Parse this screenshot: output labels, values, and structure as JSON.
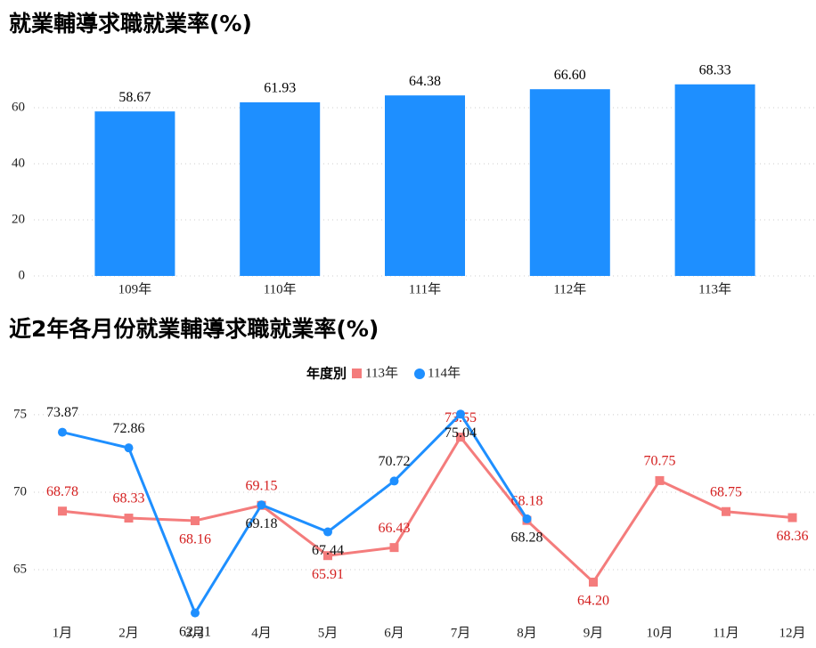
{
  "chart_data": [
    {
      "type": "bar",
      "title": "就業輔導求職就業率(%)",
      "categories": [
        "109年",
        "110年",
        "111年",
        "112年",
        "113年"
      ],
      "values": [
        58.67,
        61.93,
        64.38,
        66.6,
        68.33
      ],
      "value_labels": [
        "58.67",
        "61.93",
        "64.38",
        "66.60",
        "68.33"
      ],
      "color": "#1e8fff",
      "ylim": [
        0,
        70
      ],
      "yticks": [
        0,
        20,
        40,
        60
      ],
      "grid": true
    },
    {
      "type": "line",
      "title": "近2年各月份就業輔導求職就業率(%)",
      "legend_title": "年度別",
      "legend": "top",
      "categories": [
        "1月",
        "2月",
        "3月",
        "4月",
        "5月",
        "6月",
        "7月",
        "8月",
        "9月",
        "10月",
        "11月",
        "12月"
      ],
      "series": [
        {
          "name": "113年",
          "color": "#f47c7c",
          "marker": "square",
          "values": [
            68.78,
            68.33,
            68.16,
            69.15,
            65.91,
            66.43,
            73.55,
            68.18,
            64.2,
            70.75,
            68.75,
            68.36
          ],
          "value_labels": [
            "68.78",
            "68.33",
            "68.16",
            "69.15",
            "65.91",
            "66.43",
            "73.55",
            "68.18",
            "64.20",
            "70.75",
            "68.75",
            "68.36"
          ]
        },
        {
          "name": "114年",
          "color": "#1e8fff",
          "marker": "circle",
          "values": [
            73.87,
            72.86,
            62.21,
            69.18,
            67.44,
            70.72,
            75.04,
            68.28,
            null,
            null,
            null,
            null
          ],
          "value_labels": [
            "73.87",
            "72.86",
            "62.21",
            "69.18",
            "67.44",
            "70.72",
            "75.04",
            "68.28",
            null,
            null,
            null,
            null
          ]
        }
      ],
      "ylim": [
        61.5,
        76.2
      ],
      "yticks": [
        65,
        70,
        75
      ],
      "grid": true
    }
  ]
}
